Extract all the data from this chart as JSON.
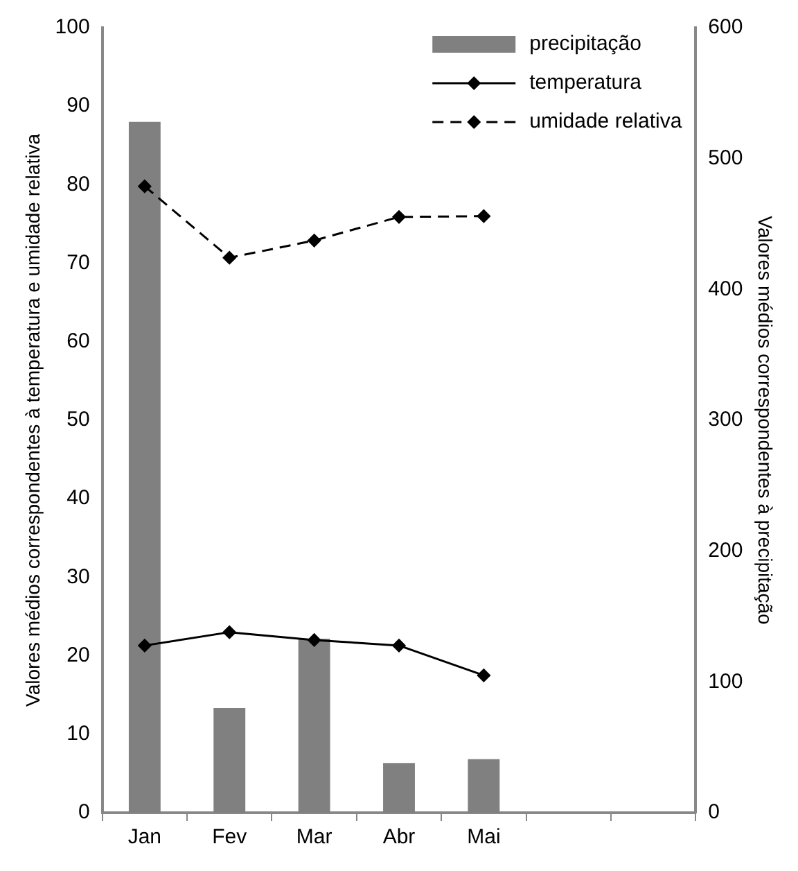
{
  "chart_data": {
    "type": "bar",
    "categories": [
      "Jan",
      "Fev",
      "Mar",
      "Abr",
      "Mai",
      null,
      null
    ],
    "ylabel": "Valores médios correspondentes à temperatura e umidade relativa",
    "y2label": "Valores médios correspondentes à precipitação",
    "ylim": [
      0,
      100
    ],
    "yticks": [
      0,
      10,
      20,
      30,
      40,
      50,
      60,
      70,
      80,
      90,
      100
    ],
    "y2lim": [
      0,
      600
    ],
    "y2ticks": [
      0,
      100,
      200,
      300,
      400,
      500,
      600
    ],
    "grid": false,
    "legend": "top right",
    "marker": "diamond",
    "series": [
      {
        "name": "precipitação",
        "axis": "y2",
        "color": "#808080",
        "values": [
          528,
          80,
          133,
          38,
          41,
          null,
          null
        ]
      },
      {
        "name": "temperatura",
        "type": "line",
        "color": "#000000",
        "line_style": "solid",
        "values": [
          21.3,
          23.0,
          22.0,
          21.3,
          17.5,
          null,
          null
        ]
      },
      {
        "name": "umidade relativa",
        "type": "line",
        "color": "#000000",
        "line_style": "dashed",
        "values": [
          79.8,
          70.7,
          72.9,
          75.9,
          76.0,
          null,
          null
        ]
      }
    ]
  }
}
